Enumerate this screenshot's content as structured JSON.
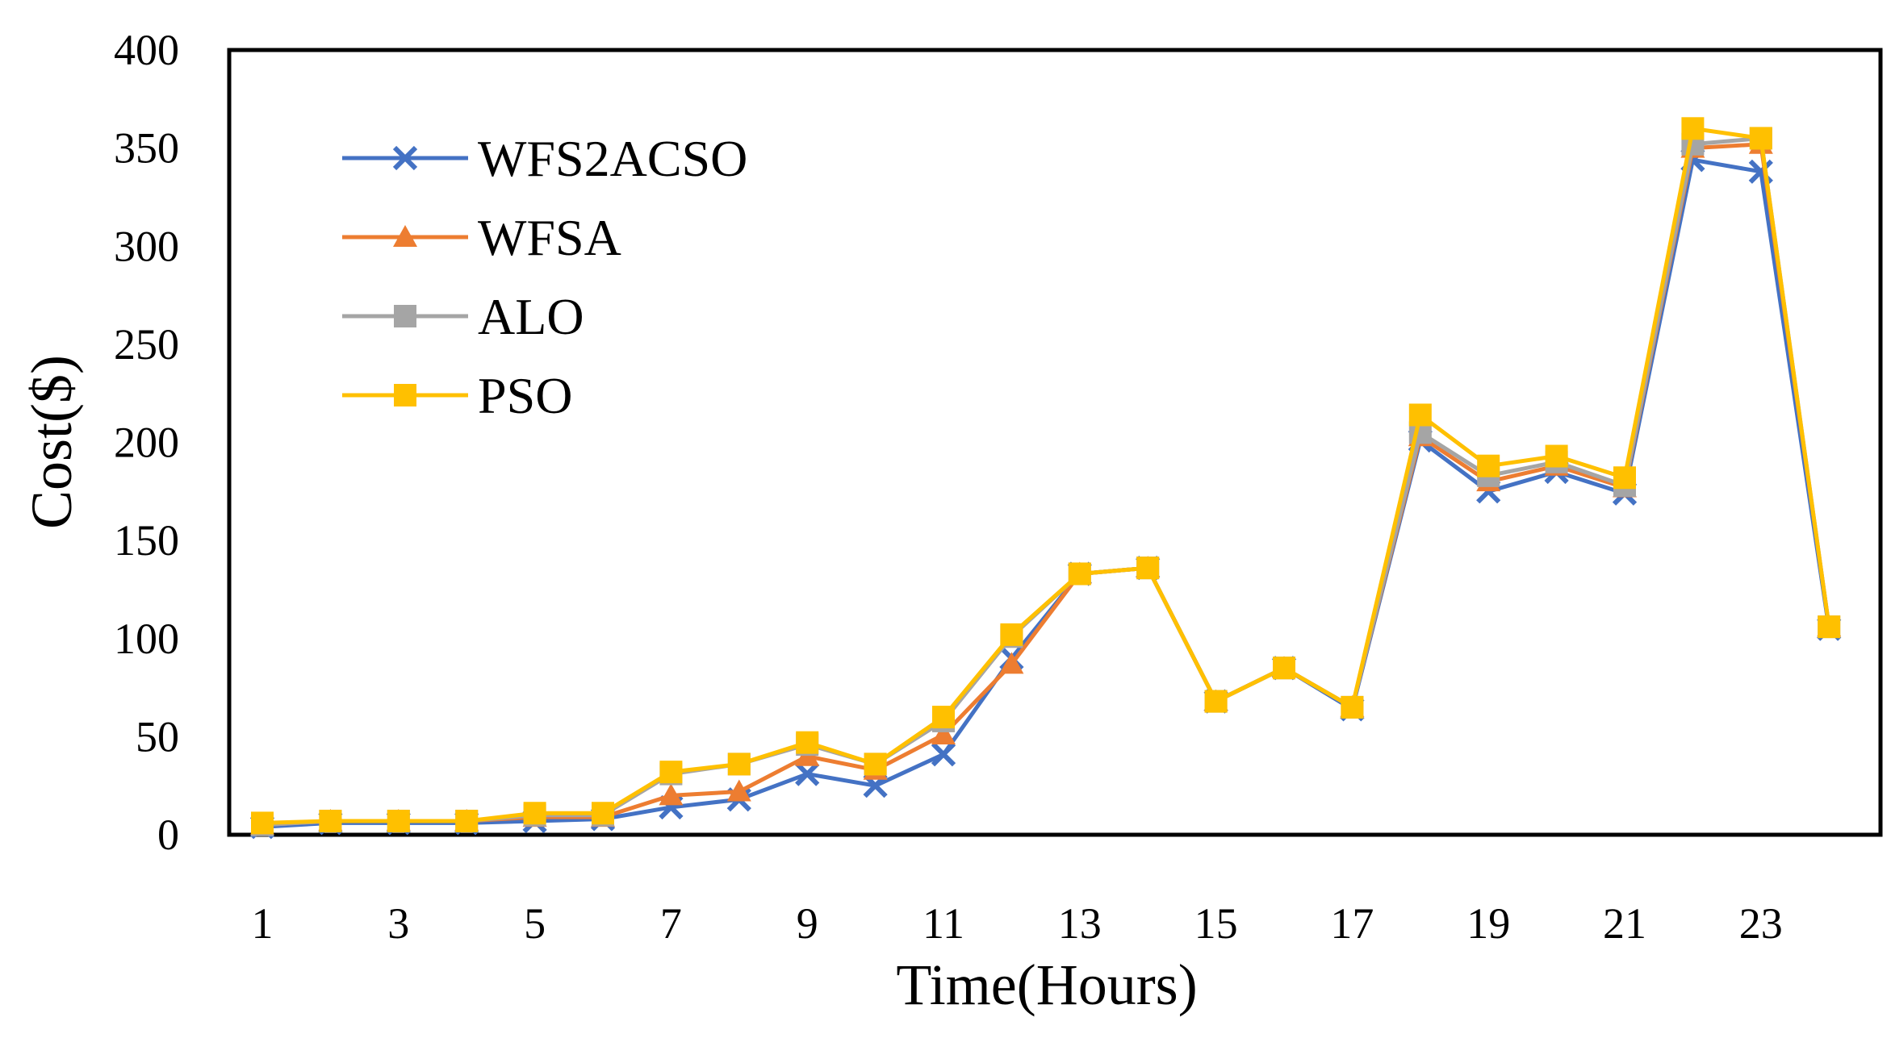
{
  "chart_data": {
    "type": "line",
    "title": "",
    "xlabel": "Time(Hours)",
    "ylabel": "Cost($)",
    "x": [
      1,
      2,
      3,
      4,
      5,
      6,
      7,
      8,
      9,
      10,
      11,
      12,
      13,
      14,
      15,
      16,
      17,
      18,
      19,
      20,
      21,
      22,
      23,
      24
    ],
    "xticks": [
      "1",
      "3",
      "5",
      "7",
      "9",
      "11",
      "13",
      "15",
      "17",
      "19",
      "21",
      "23"
    ],
    "ylim": [
      0,
      400
    ],
    "yticks": [
      "0",
      "50",
      "100",
      "150",
      "200",
      "250",
      "300",
      "350",
      "400"
    ],
    "grid": false,
    "legend_position": "top-left",
    "series": [
      {
        "name": "WFS2ACSO",
        "color": "#4472C4",
        "marker": "x",
        "values": [
          4,
          6,
          6,
          6,
          7,
          8,
          14,
          18,
          31,
          25,
          41,
          90,
          133,
          136,
          68,
          85,
          64,
          201,
          175,
          185,
          174,
          344,
          338,
          105
        ]
      },
      {
        "name": "WFSA",
        "color": "#ED7D31",
        "marker": "triangle",
        "values": [
          5,
          7,
          7,
          7,
          9,
          9,
          20,
          22,
          40,
          33,
          51,
          87,
          133,
          136,
          68,
          85,
          65,
          203,
          180,
          188,
          177,
          350,
          352,
          106
        ]
      },
      {
        "name": "ALO",
        "color": "#A5A5A5",
        "marker": "square",
        "values": [
          5,
          7,
          7,
          7,
          10,
          10,
          31,
          36,
          46,
          36,
          58,
          101,
          133,
          136,
          68,
          85,
          65,
          205,
          183,
          190,
          178,
          352,
          355,
          106
        ]
      },
      {
        "name": "PSO",
        "color": "#FFC000",
        "marker": "square",
        "values": [
          6,
          7,
          7,
          7,
          11,
          11,
          32,
          36,
          47,
          36,
          60,
          102,
          133,
          136,
          68,
          85,
          65,
          214,
          188,
          193,
          182,
          360,
          355,
          106
        ]
      }
    ]
  }
}
